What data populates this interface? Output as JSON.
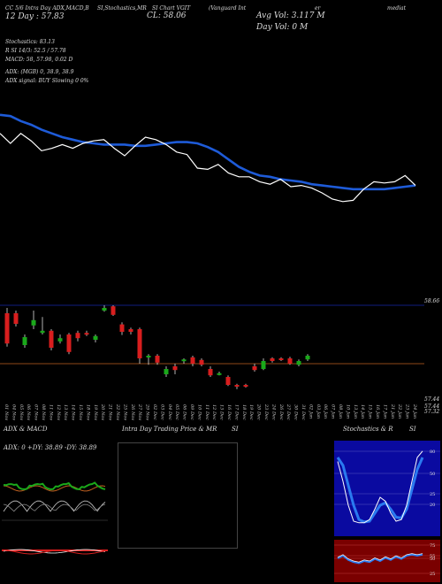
{
  "header": {
    "line1_a": "CC 5/6 Intra Day ADX,MACD,B",
    "line1_b": "SI,Stochastics,MR",
    "line1_c": "SI Chart VGIT",
    "line1_d": "(Vanguard Int",
    "line1_e": "er",
    "line1_f": "mediat",
    "line2_a": "12 Day : 57.83",
    "line2_b": "CL: 58.06",
    "avg_vol": "Avg Vol: 3.117 M",
    "day_vol": "Day Vol: 0   M",
    "stoch": "Stochastics: 83.13",
    "rsi": "R              SI 14/3: 52.5 / 57.78",
    "macd": "MACD: 58, 57.98, 0.02  D",
    "adx": "ADX:                              (MGB) 0, 38.9, 38.9",
    "adx_signal": "ADX  signal:                              BUY Slowing 0 0%"
  },
  "price_axis": {
    "top_label": "58.66",
    "bottom_labels": [
      "57.44",
      "57.44",
      "57.32"
    ]
  },
  "dates": [
    "01 Nov",
    "04 Nov",
    "05 Nov",
    "06 Nov",
    "07 Nov",
    "08 Nov",
    "11 Nov",
    "12 Nov",
    "13 Nov",
    "14 Nov",
    "15 Nov",
    "18 Nov",
    "19 Nov",
    "20 Nov",
    "21 Nov",
    "22 Nov",
    "25 Nov",
    "26 Nov",
    "27 Nov",
    "29 Nov",
    "02 Dec",
    "03 Dec",
    "04 Dec",
    "05 Dec",
    "06 Dec",
    "09 Dec",
    "10 Dec",
    "11 Dec",
    "12 Dec",
    "13 Dec",
    "16 Dec",
    "17 Dec",
    "18 Dec",
    "19 Dec",
    "20 Dec",
    "23 Dec",
    "24 Dec",
    "26 Dec",
    "27 Dec",
    "30 Dec",
    "31 Dec",
    "02 Jan",
    "03 Jan",
    "06 Jan",
    "07 Jan",
    "08 Jan",
    "10 Jan",
    "13 Jan",
    "14 Jan",
    "15 Jan",
    "16 Jan",
    "17 Jan",
    "21 Jan",
    "22 Jan",
    "23 Jan",
    "24 Jan"
  ],
  "panels": {
    "adx_title": "ADX  & MACD",
    "adx_values": "ADX: 0  +DY: 38.89  -DY: 38.89",
    "intra_title": "Intra  Day Trading Price  & MR",
    "intra_si": "SI",
    "stoch_title": "Stochastics & R",
    "stoch_si": "SI",
    "stoch_labels": [
      "80",
      "50",
      "25",
      "20"
    ],
    "rsi_labels": [
      "75",
      "55",
      "50",
      "25"
    ]
  },
  "colors": {
    "ma": "#1e5bd8",
    "up": "#1aa81a",
    "down": "#d81e1e",
    "orange": "#c06020",
    "stoch": "#1e5bd8"
  },
  "chart_data": {
    "type": "candlestick",
    "close_line": [
      0.78,
      0.7,
      0.78,
      0.72,
      0.64,
      0.66,
      0.69,
      0.66,
      0.7,
      0.72,
      0.73,
      0.66,
      0.6,
      0.68,
      0.75,
      0.73,
      0.69,
      0.63,
      0.61,
      0.5,
      0.49,
      0.53,
      0.46,
      0.43,
      0.43,
      0.39,
      0.37,
      0.41,
      0.35,
      0.36,
      0.34,
      0.3,
      0.25,
      0.23,
      0.24,
      0.33,
      0.39,
      0.38,
      0.39,
      0.44,
      0.36
    ],
    "ma_line": [
      0.93,
      0.92,
      0.88,
      0.85,
      0.81,
      0.78,
      0.75,
      0.73,
      0.71,
      0.7,
      0.69,
      0.69,
      0.69,
      0.68,
      0.68,
      0.69,
      0.7,
      0.71,
      0.71,
      0.7,
      0.67,
      0.63,
      0.57,
      0.51,
      0.47,
      0.44,
      0.43,
      0.41,
      0.4,
      0.39,
      0.37,
      0.36,
      0.35,
      0.34,
      0.33,
      0.33,
      0.33,
      0.33,
      0.34,
      0.35,
      0.36
    ],
    "candles": [
      {
        "o": 0.28,
        "c": 0.85,
        "h": 0.95,
        "l": 0.22,
        "up": false
      },
      {
        "o": 0.65,
        "c": 0.85,
        "h": 0.9,
        "l": 0.6,
        "up": false
      },
      {
        "o": 0.25,
        "c": 0.4,
        "h": 0.45,
        "l": 0.2,
        "up": true
      },
      {
        "o": 0.62,
        "c": 0.72,
        "h": 0.9,
        "l": 0.55,
        "up": true
      },
      {
        "o": 0.48,
        "c": 0.52,
        "h": 0.78,
        "l": 0.45,
        "up": true
      },
      {
        "o": 0.52,
        "c": 0.2,
        "h": 0.55,
        "l": 0.15,
        "up": false
      },
      {
        "o": 0.32,
        "c": 0.38,
        "h": 0.45,
        "l": 0.28,
        "up": true
      },
      {
        "o": 0.45,
        "c": 0.12,
        "h": 0.48,
        "l": 0.08,
        "up": false
      },
      {
        "o": 0.48,
        "c": 0.38,
        "h": 0.52,
        "l": 0.32,
        "up": false
      },
      {
        "o": 0.48,
        "c": 0.45,
        "h": 0.52,
        "l": 0.42,
        "up": false
      },
      {
        "o": 0.35,
        "c": 0.42,
        "h": 0.45,
        "l": 0.3,
        "up": true
      },
      {
        "o": 0.9,
        "c": 0.95,
        "h": 1.0,
        "l": 0.88,
        "up": true
      },
      {
        "o": 0.98,
        "c": 0.82,
        "h": 1.0,
        "l": 0.8,
        "up": false
      },
      {
        "o": 0.64,
        "c": 0.5,
        "h": 0.68,
        "l": 0.44,
        "up": false
      },
      {
        "o": 0.55,
        "c": 0.5,
        "h": 0.58,
        "l": 0.45,
        "up": false
      },
      {
        "o": 0.55,
        "c": 0.0,
        "h": 0.58,
        "l": -0.1,
        "up": false
      },
      {
        "o": 0.02,
        "c": 0.05,
        "h": 0.08,
        "l": -0.12,
        "up": true
      },
      {
        "o": 0.05,
        "c": -0.08,
        "h": 0.08,
        "l": -0.12,
        "up": false
      },
      {
        "o": -0.3,
        "c": -0.2,
        "h": -0.15,
        "l": -0.35,
        "up": true
      },
      {
        "o": -0.15,
        "c": -0.22,
        "h": -0.1,
        "l": -0.3,
        "up": false
      },
      {
        "o": -0.05,
        "c": -0.02,
        "h": 0.0,
        "l": -0.1,
        "up": true
      },
      {
        "o": 0.02,
        "c": -0.1,
        "h": 0.05,
        "l": -0.15,
        "up": false
      },
      {
        "o": -0.03,
        "c": -0.12,
        "h": 0.0,
        "l": -0.15,
        "up": false
      },
      {
        "o": -0.2,
        "c": -0.32,
        "h": -0.15,
        "l": -0.35,
        "up": false
      },
      {
        "o": -0.3,
        "c": -0.28,
        "h": -0.25,
        "l": -0.32,
        "up": true
      },
      {
        "o": -0.35,
        "c": -0.5,
        "h": -0.32,
        "l": -0.52,
        "up": false
      },
      {
        "o": -0.5,
        "c": -0.52,
        "h": -0.48,
        "l": -0.58,
        "up": false
      },
      {
        "o": -0.5,
        "c": -0.52,
        "h": -0.48,
        "l": -0.55,
        "up": false
      },
      {
        "o": -0.15,
        "c": -0.22,
        "h": -0.1,
        "l": -0.25,
        "up": false
      },
      {
        "o": -0.05,
        "c": -0.2,
        "h": 0.0,
        "l": -0.22,
        "up": true
      },
      {
        "o": 0.0,
        "c": -0.05,
        "h": 0.02,
        "l": -0.08,
        "up": false
      },
      {
        "o": 0.0,
        "c": -0.02,
        "h": 0.02,
        "l": -0.05,
        "up": false
      },
      {
        "o": 0.0,
        "c": -0.1,
        "h": 0.03,
        "l": -0.12,
        "up": false
      },
      {
        "o": -0.12,
        "c": -0.05,
        "h": -0.02,
        "l": -0.15,
        "up": true
      },
      {
        "o": -0.02,
        "c": 0.05,
        "h": 0.08,
        "l": -0.05,
        "up": true
      }
    ]
  }
}
